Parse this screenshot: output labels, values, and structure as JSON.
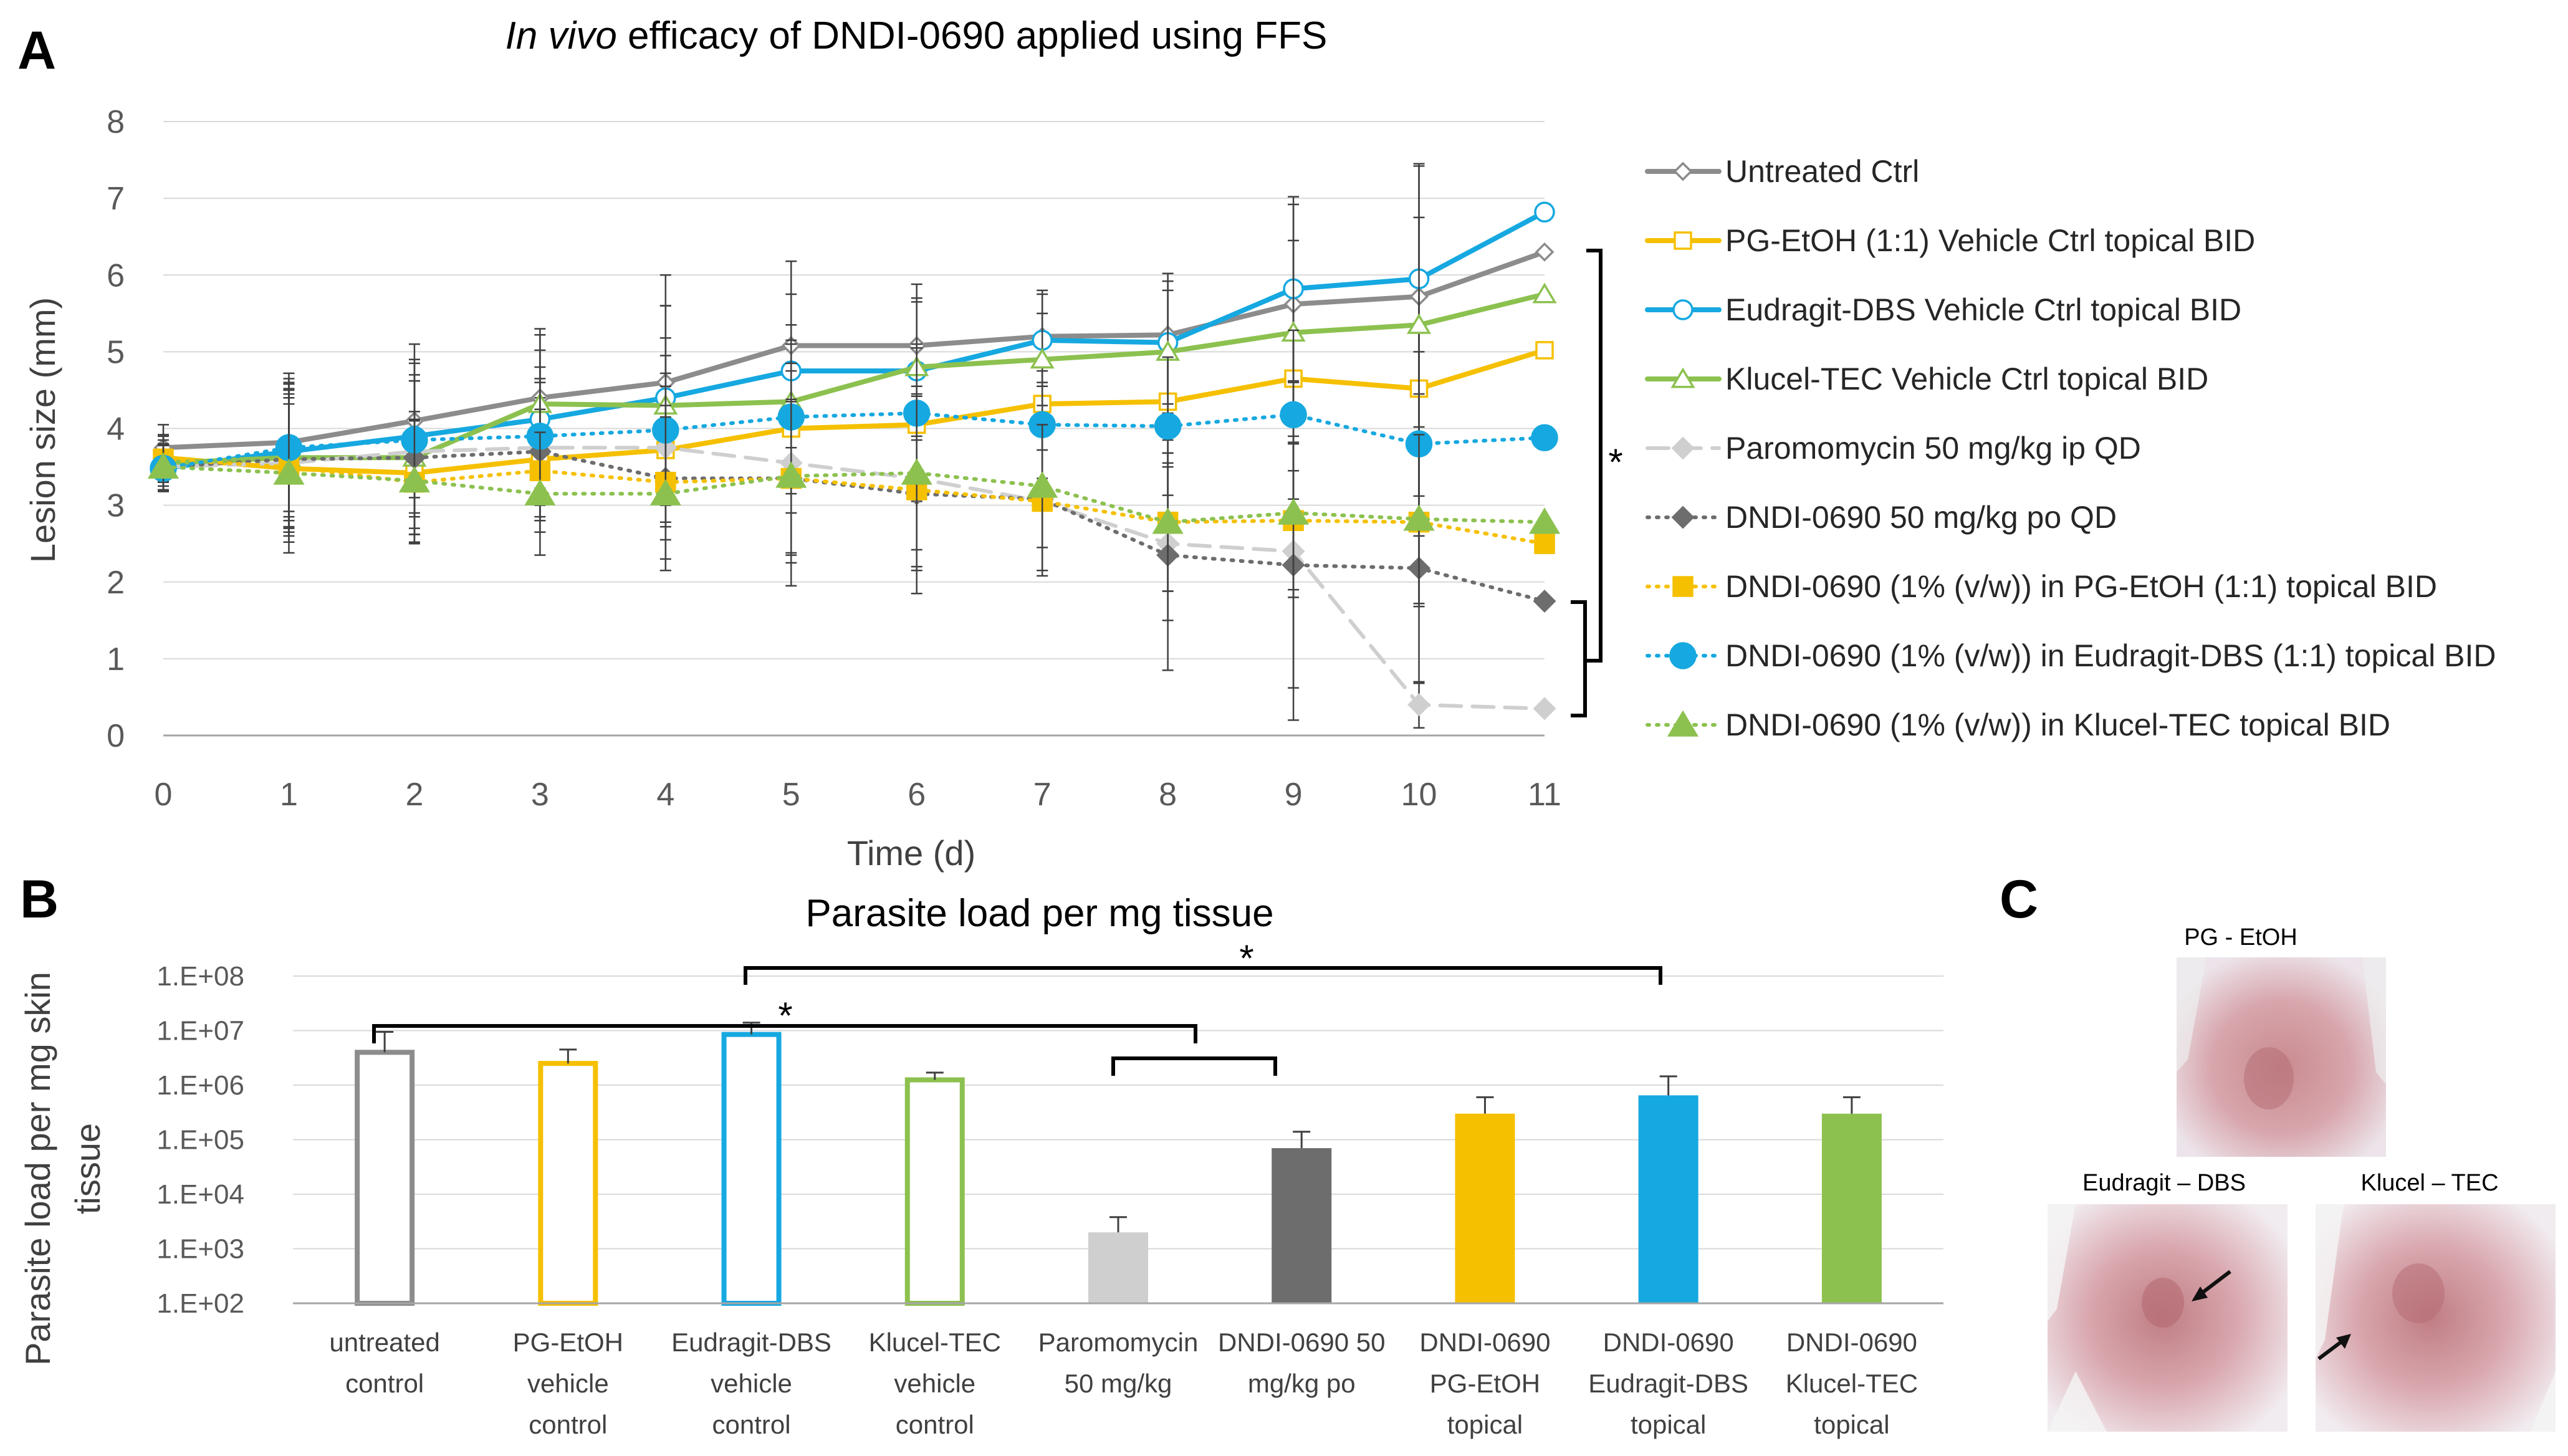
{
  "panel_labels": {
    "a": "A",
    "b": "B",
    "c": "C"
  },
  "colors": {
    "grey": "#8c8c8c",
    "yellow": "#f5c000",
    "blue": "#16a8e0",
    "green": "#8cc14f",
    "light_grey": "#cfcfcf",
    "dark_grey": "#6d6d6d",
    "axis": "#a6a6a6",
    "grid": "#d9d9d9"
  },
  "chart_data": [
    {
      "type": "line",
      "title_italic": "In vivo",
      "title_rest": " efficacy of DNDI-0690 applied using FFS",
      "xlabel": "Time (d)",
      "ylabel": "Lesion size (mm)",
      "xlim": [
        0,
        11
      ],
      "ylim": [
        0,
        8
      ],
      "x": [
        0,
        1,
        2,
        3,
        4,
        5,
        6,
        7,
        8,
        9,
        10,
        11
      ],
      "xticks": [
        "0",
        "1",
        "2",
        "3",
        "4",
        "5",
        "6",
        "7",
        "8",
        "9",
        "10",
        "11"
      ],
      "yticks": [
        "0",
        "1",
        "2",
        "3",
        "4",
        "5",
        "6",
        "7",
        "8"
      ],
      "significance": "*",
      "series": [
        {
          "name": "Untreated Ctrl",
          "color_key": "grey",
          "marker": "open-diamond",
          "dash": "solid",
          "values": [
            3.75,
            3.82,
            4.1,
            4.4,
            4.6,
            5.08,
            5.08,
            5.2,
            5.22,
            5.62,
            5.72,
            6.3
          ],
          "errors": [
            0.3,
            0.9,
            1.0,
            0.9,
            1.4,
            1.1,
            0.8,
            0.6,
            0.8,
            1.3,
            1.7,
            0
          ]
        },
        {
          "name": "PG-EtOH (1:1) Vehicle Ctrl topical BID",
          "color_key": "yellow",
          "marker": "open-square",
          "dash": "solid",
          "values": [
            3.62,
            3.48,
            3.42,
            3.6,
            3.72,
            4.0,
            4.05,
            4.32,
            4.35,
            4.65,
            4.52,
            5.02
          ],
          "errors": [
            0.3,
            1.1,
            0.8,
            0.8,
            1.0,
            1.1,
            1.0,
            0.6,
            0.8,
            1.2,
            1.4,
            0
          ]
        },
        {
          "name": "Eudragit-DBS Vehicle Ctrl topical BID",
          "color_key": "blue",
          "marker": "open-circle",
          "dash": "solid",
          "values": [
            3.48,
            3.7,
            3.9,
            4.12,
            4.4,
            4.75,
            4.75,
            5.15,
            5.12,
            5.82,
            5.95,
            6.82
          ],
          "errors": [
            0.3,
            0.9,
            1.0,
            0.9,
            1.2,
            1.0,
            0.9,
            0.6,
            0.8,
            1.2,
            1.5,
            0
          ]
        },
        {
          "name": "Klucel-TEC Vehicle Ctrl topical BID",
          "color_key": "green",
          "marker": "open-triangle",
          "dash": "solid",
          "values": [
            3.55,
            3.62,
            3.62,
            4.32,
            4.3,
            4.35,
            4.8,
            4.9,
            5.0,
            5.25,
            5.35,
            5.75
          ],
          "errors": [
            0.3,
            0.9,
            1.0,
            0.9,
            1.3,
            1.0,
            0.9,
            0.6,
            0.8,
            1.2,
            1.4,
            0
          ]
        },
        {
          "name": "Paromomycin 50 mg/kg ip QD",
          "color_key": "light_grey",
          "marker": "filled-diamond",
          "dash": "longdash",
          "values": [
            3.5,
            3.55,
            3.7,
            3.75,
            3.75,
            3.55,
            3.35,
            3.05,
            2.5,
            2.4,
            0.4,
            0.35
          ],
          "errors": [
            0.3,
            0.9,
            1.0,
            0.9,
            1.2,
            1.3,
            1.2,
            0.9,
            1.0,
            2.2,
            0.3,
            0
          ]
        },
        {
          "name": "DNDI-0690 50 mg/kg po QD",
          "color_key": "dark_grey",
          "marker": "filled-diamond",
          "dash": "dotted",
          "values": [
            3.5,
            3.6,
            3.62,
            3.7,
            3.35,
            3.35,
            3.15,
            3.08,
            2.35,
            2.22,
            2.18,
            1.75
          ],
          "errors": [
            0.3,
            0.9,
            1.0,
            0.9,
            1.2,
            1.4,
            1.3,
            1.0,
            1.5,
            1.6,
            1.5,
            0
          ]
        },
        {
          "name": "DNDI-0690 (1% (v/w)) in PG-EtOH (1:1) topical BID",
          "color_key": "yellow",
          "marker": "filled-square",
          "dash": "dotted",
          "values": [
            3.6,
            3.5,
            3.3,
            3.45,
            3.3,
            3.35,
            3.2,
            3.05,
            2.78,
            2.8,
            2.78,
            2.5
          ],
          "errors": [
            0.3,
            0.9,
            0.8,
            0.8,
            1.0,
            1.0,
            1.0,
            0.9,
            0.9,
            1.0,
            1.1,
            0
          ]
        },
        {
          "name": "DNDI-0690 (1% (v/w)) in Eudragit-DBS (1:1) topical BID",
          "color_key": "blue",
          "marker": "filled-circle",
          "dash": "dotted",
          "values": [
            3.48,
            3.75,
            3.85,
            3.9,
            3.98,
            4.15,
            4.2,
            4.05,
            4.03,
            4.18,
            3.8,
            3.88
          ],
          "errors": [
            0.3,
            0.9,
            1.0,
            0.9,
            1.2,
            1.0,
            0.9,
            0.7,
            0.9,
            1.1,
            1.2,
            0
          ]
        },
        {
          "name": "DNDI-0690 (1% (v/w)) in Klucel-TEC topical BID",
          "color_key": "green",
          "marker": "filled-triangle",
          "dash": "dotted",
          "values": [
            3.5,
            3.42,
            3.32,
            3.15,
            3.15,
            3.38,
            3.42,
            3.25,
            2.78,
            2.9,
            2.82,
            2.78
          ],
          "errors": [
            0.3,
            0.9,
            0.8,
            0.8,
            1.0,
            1.0,
            1.0,
            0.8,
            0.9,
            1.0,
            1.1,
            0
          ]
        }
      ]
    },
    {
      "type": "bar",
      "title": "Parasite load per mg tissue",
      "ylabel_line1": "Parasite load per mg skin",
      "ylabel_line2": "tissue",
      "yscale": "log",
      "ylim": [
        100,
        100000000
      ],
      "yticks": [
        "1.E+02",
        "1.E+03",
        "1.E+04",
        "1.E+05",
        "1.E+06",
        "1.E+07",
        "1.E+08"
      ],
      "significance": [
        "*",
        "*"
      ],
      "bars": [
        {
          "label": [
            "untreated",
            "control"
          ],
          "value": 4000000,
          "error_top": 9500000,
          "color_key": "grey",
          "fill": "open"
        },
        {
          "label": [
            "PG-EtOH",
            "vehicle",
            "control"
          ],
          "value": 2500000,
          "error_top": 4500000,
          "color_key": "yellow",
          "fill": "open"
        },
        {
          "label": [
            "Eudragit-DBS",
            "vehicle",
            "control"
          ],
          "value": 8500000,
          "error_top": 14000000,
          "color_key": "blue",
          "fill": "open"
        },
        {
          "label": [
            "Klucel-TEC",
            "vehicle",
            "control"
          ],
          "value": 1250000,
          "error_top": 1700000,
          "color_key": "green",
          "fill": "open"
        },
        {
          "label": [
            "Paromomycin",
            "50 mg/kg"
          ],
          "value": 2000,
          "error_top": 3800,
          "color_key": "light_grey",
          "fill": "solid"
        },
        {
          "label": [
            "DNDI-0690 50",
            "mg/kg po"
          ],
          "value": 70000,
          "error_top": 140000,
          "color_key": "dark_grey",
          "fill": "solid"
        },
        {
          "label": [
            "DNDI-0690",
            "PG-EtOH",
            "topical"
          ],
          "value": 300000,
          "error_top": 600000,
          "color_key": "yellow",
          "fill": "solid"
        },
        {
          "label": [
            "DNDI-0690",
            "Eudragit-DBS",
            "topical"
          ],
          "value": 650000,
          "error_top": 1450000,
          "color_key": "blue",
          "fill": "solid"
        },
        {
          "label": [
            "DNDI-0690",
            "Klucel-TEC",
            "topical"
          ],
          "value": 300000,
          "error_top": 600000,
          "color_key": "green",
          "fill": "solid"
        }
      ]
    }
  ],
  "photos": [
    {
      "caption": "PG - EtOH"
    },
    {
      "caption": "Eudragit – DBS"
    },
    {
      "caption": "Klucel – TEC"
    }
  ]
}
